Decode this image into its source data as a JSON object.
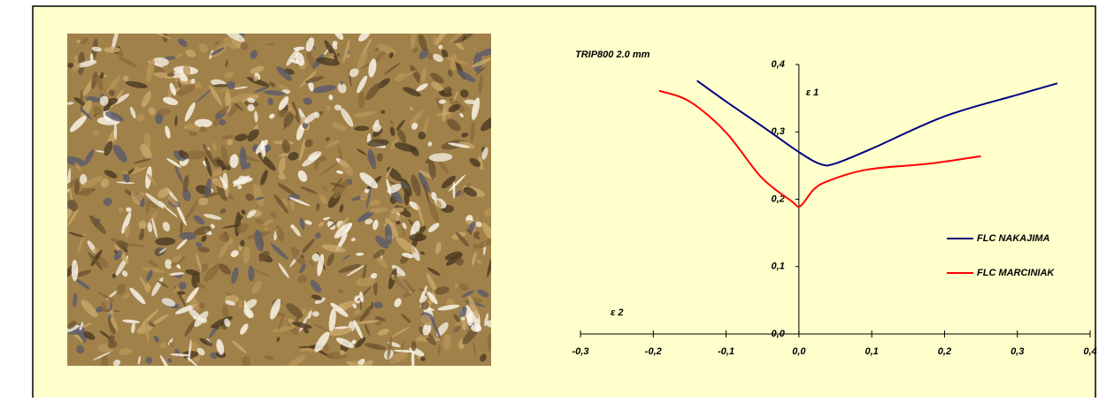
{
  "chart_data": {
    "type": "line",
    "title": "TRIP800 2.0 mm",
    "x_label": "ε 2",
    "y_label": "ε 1",
    "xlim": [
      -0.3,
      0.4
    ],
    "xticks": [
      {
        "value": -0.3,
        "label": "-0,3"
      },
      {
        "value": -0.2,
        "label": "-0,2"
      },
      {
        "value": -0.1,
        "label": "-0,1"
      },
      {
        "value": 0,
        "label": "0,0"
      },
      {
        "value": 0.1,
        "label": "0,1"
      },
      {
        "value": 0.2,
        "label": "0,2"
      },
      {
        "value": 0.3,
        "label": "0,3"
      },
      {
        "value": 0.4,
        "label": "0,4"
      }
    ],
    "ylim": [
      0,
      0.4
    ],
    "yticks": [
      {
        "value": 0,
        "label": "0,0"
      },
      {
        "value": 0.1,
        "label": "0,1"
      },
      {
        "value": 0.2,
        "label": "0,2"
      },
      {
        "value": 0.3,
        "label": "0,3"
      },
      {
        "value": 0.4,
        "label": "0,4"
      }
    ],
    "legend": "right",
    "series": [
      {
        "name": "FLC NAKAJIMA",
        "color": "#000080",
        "x": [
          -0.14,
          -0.1,
          -0.05,
          0,
          0.03,
          0.05,
          0.1,
          0.2,
          0.3,
          0.355
        ],
        "values": [
          0.376,
          0.345,
          0.308,
          0.27,
          0.252,
          0.253,
          0.275,
          0.323,
          0.355,
          0.372
        ]
      },
      {
        "name": "FLC MARCINIAK",
        "color": "#ff0000",
        "x": [
          -0.192,
          -0.15,
          -0.1,
          -0.052,
          -0.01,
          0.002,
          0.02,
          0.04,
          0.094,
          0.18,
          0.25
        ],
        "values": [
          0.361,
          0.345,
          0.299,
          0.233,
          0.197,
          0.19,
          0.214,
          0.227,
          0.244,
          0.253,
          0.264
        ]
      }
    ]
  }
}
